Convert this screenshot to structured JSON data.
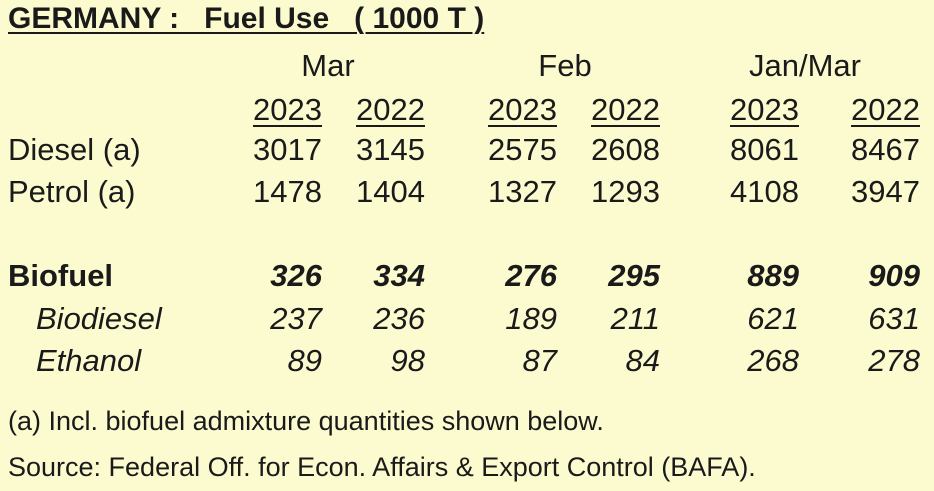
{
  "title": "GERMANY :   Fuel Use   ( 1000 T )",
  "chart_data": {
    "type": "table",
    "title": "GERMANY :   Fuel Use   ( 1000 T )",
    "period_headers": [
      "Mar",
      "Feb",
      "Jan/Mar"
    ],
    "year_headers": [
      "2023",
      "2022",
      "2023",
      "2022",
      "2023",
      "2022"
    ],
    "rows": [
      {
        "label": "Diesel (a)",
        "values": [
          "3017",
          "3145",
          "2575",
          "2608",
          "8061",
          "8467"
        ]
      },
      {
        "label": "Petrol (a)",
        "values": [
          "1478",
          "1404",
          "1327",
          "1293",
          "4108",
          "3947"
        ]
      },
      {
        "label": "Biofuel",
        "values": [
          "326",
          "334",
          "276",
          "295",
          "889",
          "909"
        ]
      },
      {
        "label": "Biodiesel",
        "values": [
          "237",
          "236",
          "189",
          "211",
          "621",
          "631"
        ]
      },
      {
        "label": "Ethanol",
        "values": [
          "89",
          "98",
          "87",
          "84",
          "268",
          "278"
        ]
      }
    ]
  },
  "notes": {
    "footnote": "(a) Incl. biofuel admixture quantities shown below.",
    "source": "Source: Federal Off. for Econ. Affairs & Export Control (BAFA)."
  },
  "colors": {
    "background": "#fbfbcf",
    "text": "#1a1a1a"
  }
}
